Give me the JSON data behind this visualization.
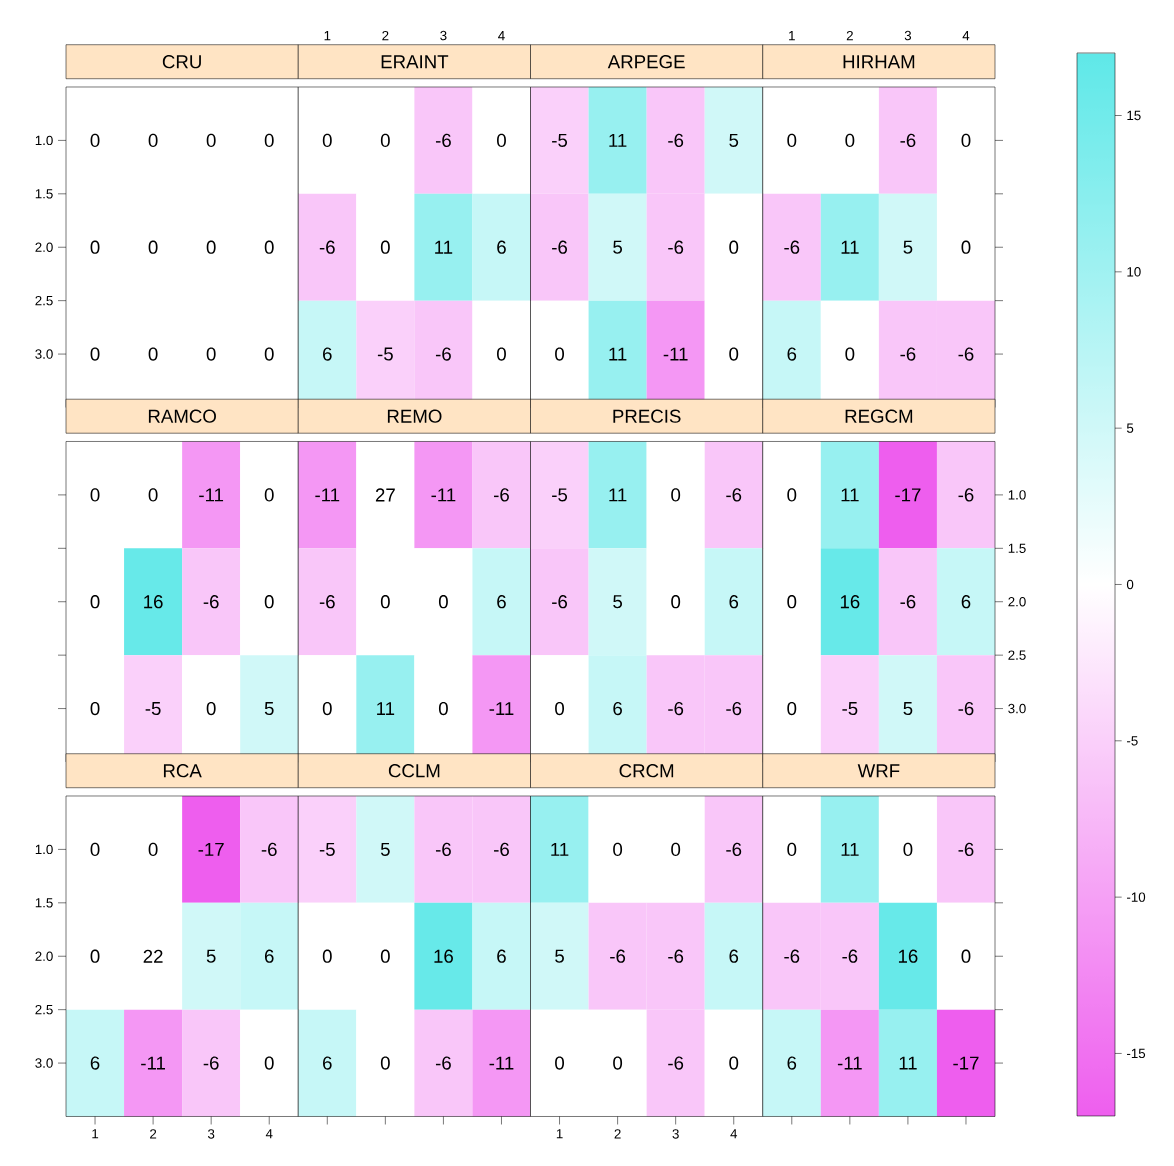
{
  "chart_data": [
    {
      "type": "heatmap",
      "title": "CRU",
      "xlim": [
        0.5,
        4.5
      ],
      "xticks": [
        {
          "value": 1,
          "label": null
        },
        {
          "value": 2,
          "label": null
        },
        {
          "value": 3,
          "label": null
        },
        {
          "value": 4,
          "label": null
        }
      ],
      "ylim": [
        3.5,
        0.5
      ],
      "yticks": [
        {
          "value": 1,
          "label": "1.0"
        },
        {
          "value": 1.5,
          "label": "1.5"
        },
        {
          "value": 2,
          "label": "2.0"
        },
        {
          "value": 2.5,
          "label": "2.5"
        },
        {
          "value": 3,
          "label": "3.0"
        }
      ],
      "tick_labels": "y",
      "data_labels": true,
      "cells": [
        [
          0,
          0,
          0,
          0
        ],
        [
          0,
          0,
          0,
          0
        ],
        [
          0,
          0,
          0,
          0
        ]
      ]
    },
    {
      "type": "heatmap",
      "title": "ERAINT",
      "xlim": [
        0.5,
        4.5
      ],
      "xticks": [
        1,
        2,
        3,
        4
      ],
      "ylim": [
        3.5,
        0.5
      ],
      "tick_labels": "x",
      "data_labels": true,
      "cells": [
        [
          0,
          0,
          -6,
          0
        ],
        [
          -6,
          0,
          11,
          6
        ],
        [
          6,
          -5,
          -6,
          0
        ]
      ]
    },
    {
      "type": "heatmap",
      "title": "ARPEGE",
      "xlim": [
        0.5,
        4.5
      ],
      "xticks": [
        {
          "value": 1,
          "label": null
        },
        {
          "value": 2,
          "label": null
        },
        {
          "value": 3,
          "label": null
        },
        {
          "value": 4,
          "label": null
        }
      ],
      "ylim": [
        3.5,
        0.5
      ],
      "tick_labels": false,
      "data_labels": true,
      "cells": [
        [
          -5,
          11,
          -6,
          5
        ],
        [
          -6,
          5,
          -6,
          0
        ],
        [
          0,
          11,
          -11,
          0
        ]
      ]
    },
    {
      "type": "heatmap",
      "title": "HIRHAM",
      "xlim": [
        0.5,
        4.5
      ],
      "xticks": [
        1,
        2,
        3,
        4
      ],
      "ylim": [
        3.5,
        0.5
      ],
      "yticks": [
        {
          "value": 1,
          "label": null
        },
        {
          "value": 1.5,
          "label": null
        },
        {
          "value": 2,
          "label": null
        },
        {
          "value": 2.5,
          "label": null
        },
        {
          "value": 3,
          "label": null
        }
      ],
      "tick_labels": "x",
      "data_labels": true,
      "cells": [
        [
          0,
          0,
          -6,
          0
        ],
        [
          -6,
          11,
          5,
          0
        ],
        [
          6,
          0,
          -6,
          -6
        ]
      ]
    },
    {
      "type": "heatmap",
      "title": "RAMCO",
      "xlim": [
        0.5,
        4.5
      ],
      "ylim": [
        3.5,
        0.5
      ],
      "yticks": [
        {
          "value": 1,
          "label": null
        },
        {
          "value": 1.5,
          "label": null
        },
        {
          "value": 2,
          "label": null
        },
        {
          "value": 2.5,
          "label": null
        },
        {
          "value": 3,
          "label": null
        }
      ],
      "tick_labels": false,
      "data_labels": true,
      "cells": [
        [
          0,
          0,
          -11,
          0
        ],
        [
          0,
          16,
          -6,
          0
        ],
        [
          0,
          -5,
          0,
          5
        ]
      ]
    },
    {
      "type": "heatmap",
      "title": "REMO",
      "xlim": [
        0.5,
        4.5
      ],
      "ylim": [
        3.5,
        0.5
      ],
      "tick_labels": false,
      "data_labels": true,
      "cells": [
        [
          -11,
          27,
          -11,
          -6
        ],
        [
          -6,
          0,
          0,
          6
        ],
        [
          0,
          11,
          0,
          -11
        ]
      ]
    },
    {
      "type": "heatmap",
      "title": "PRECIS",
      "xlim": [
        0.5,
        4.5
      ],
      "ylim": [
        3.5,
        0.5
      ],
      "tick_labels": false,
      "data_labels": true,
      "cells": [
        [
          -5,
          11,
          0,
          -6
        ],
        [
          -6,
          5,
          0,
          6
        ],
        [
          0,
          6,
          -6,
          -6
        ]
      ]
    },
    {
      "type": "heatmap",
      "title": "REGCM",
      "xlim": [
        0.5,
        4.5
      ],
      "ylim": [
        3.5,
        0.5
      ],
      "yticks": [
        {
          "value": 1,
          "label": "1.0"
        },
        {
          "value": 1.5,
          "label": "1.5"
        },
        {
          "value": 2,
          "label": "2.0"
        },
        {
          "value": 2.5,
          "label": "2.5"
        },
        {
          "value": 3,
          "label": "3.0"
        }
      ],
      "tick_labels": "y",
      "data_labels": true,
      "cells": [
        [
          0,
          11,
          -17,
          -6
        ],
        [
          0,
          16,
          -6,
          6
        ],
        [
          0,
          -5,
          5,
          -6
        ]
      ]
    },
    {
      "type": "heatmap",
      "title": "RCA",
      "xlim": [
        0.5,
        4.5
      ],
      "xticks": [
        1,
        2,
        3,
        4
      ],
      "ylim": [
        3.5,
        0.5
      ],
      "yticks": [
        {
          "value": 1,
          "label": "1.0"
        },
        {
          "value": 1.5,
          "label": "1.5"
        },
        {
          "value": 2,
          "label": "2.0"
        },
        {
          "value": 2.5,
          "label": "2.5"
        },
        {
          "value": 3,
          "label": "3.0"
        }
      ],
      "data_labels": true,
      "cells": [
        [
          0,
          0,
          -17,
          -6
        ],
        [
          0,
          22,
          5,
          6
        ],
        [
          6,
          -11,
          -6,
          0
        ]
      ]
    },
    {
      "type": "heatmap",
      "title": "CCLM",
      "xlim": [
        0.5,
        4.5
      ],
      "xticks": [
        {
          "value": 1,
          "label": null
        },
        {
          "value": 2,
          "label": null
        },
        {
          "value": 3,
          "label": null
        },
        {
          "value": 4,
          "label": null
        }
      ],
      "ylim": [
        3.5,
        0.5
      ],
      "tick_labels": false,
      "data_labels": true,
      "cells": [
        [
          -5,
          5,
          -6,
          -6
        ],
        [
          0,
          0,
          16,
          6
        ],
        [
          6,
          0,
          -6,
          -11
        ]
      ]
    },
    {
      "type": "heatmap",
      "title": "CRCM",
      "xlim": [
        0.5,
        4.5
      ],
      "xticks": [
        1,
        2,
        3,
        4
      ],
      "ylim": [
        3.5,
        0.5
      ],
      "tick_labels": "x",
      "data_labels": true,
      "cells": [
        [
          11,
          0,
          0,
          -6
        ],
        [
          5,
          -6,
          -6,
          6
        ],
        [
          0,
          0,
          -6,
          0
        ]
      ]
    },
    {
      "type": "heatmap",
      "title": "WRF",
      "xlim": [
        0.5,
        4.5
      ],
      "xticks": [
        {
          "value": 1,
          "label": null
        },
        {
          "value": 2,
          "label": null
        },
        {
          "value": 3,
          "label": null
        },
        {
          "value": 4,
          "label": null
        }
      ],
      "ylim": [
        3.5,
        0.5
      ],
      "yticks": [
        {
          "value": 1,
          "label": null
        },
        {
          "value": 1.5,
          "label": null
        },
        {
          "value": 2,
          "label": null
        },
        {
          "value": 2.5,
          "label": null
        },
        {
          "value": 3,
          "label": null
        }
      ],
      "tick_labels": false,
      "data_labels": true,
      "clim": [
        -17,
        17
      ],
      "cticks": [
        -15,
        -10,
        -5,
        0,
        5,
        10,
        15
      ],
      "cells": [
        [
          0,
          11,
          0,
          -6
        ],
        [
          -6,
          -6,
          16,
          0
        ],
        [
          6,
          -11,
          11,
          -17
        ]
      ]
    }
  ]
}
